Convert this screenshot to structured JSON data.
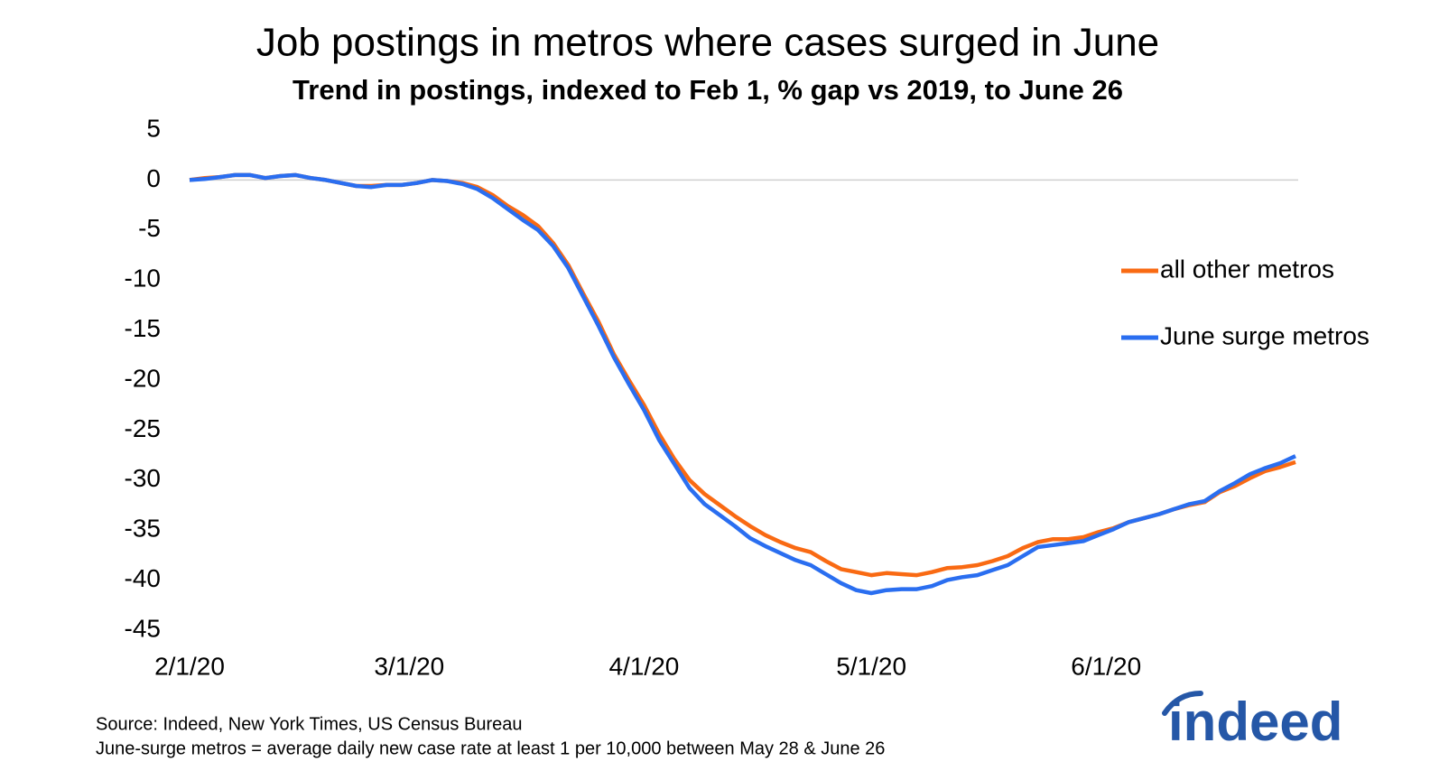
{
  "chart_data": {
    "type": "line",
    "title": "Job postings in metros where cases surged in June",
    "subtitle": "Trend in postings, indexed to Feb 1, % gap vs 2019, to June 26",
    "x": [
      "2/1/20",
      "2/3/20",
      "2/5/20",
      "2/7/20",
      "2/9/20",
      "2/11/20",
      "2/13/20",
      "2/15/20",
      "2/17/20",
      "2/19/20",
      "2/21/20",
      "2/23/20",
      "2/25/20",
      "2/27/20",
      "2/29/20",
      "3/2/20",
      "3/4/20",
      "3/6/20",
      "3/8/20",
      "3/10/20",
      "3/12/20",
      "3/14/20",
      "3/16/20",
      "3/18/20",
      "3/20/20",
      "3/22/20",
      "3/24/20",
      "3/26/20",
      "3/28/20",
      "3/30/20",
      "4/1/20",
      "4/3/20",
      "4/5/20",
      "4/7/20",
      "4/9/20",
      "4/11/20",
      "4/13/20",
      "4/15/20",
      "4/17/20",
      "4/19/20",
      "4/21/20",
      "4/23/20",
      "4/25/20",
      "4/27/20",
      "4/29/20",
      "5/1/20",
      "5/3/20",
      "5/5/20",
      "5/7/20",
      "5/9/20",
      "5/11/20",
      "5/13/20",
      "5/15/20",
      "5/17/20",
      "5/19/20",
      "5/21/20",
      "5/23/20",
      "5/25/20",
      "5/27/20",
      "5/29/20",
      "5/31/20",
      "6/2/20",
      "6/4/20",
      "6/6/20",
      "6/8/20",
      "6/10/20",
      "6/12/20",
      "6/14/20",
      "6/16/20",
      "6/18/20",
      "6/20/20",
      "6/22/20",
      "6/24/20",
      "6/26/20"
    ],
    "series": [
      {
        "name": "all other metros",
        "color": "#f96a13",
        "values": [
          0,
          0.2,
          0.3,
          0.5,
          0.5,
          0.2,
          0.4,
          0.5,
          0.2,
          0,
          -0.3,
          -0.6,
          -0.6,
          -0.5,
          -0.5,
          -0.3,
          0,
          -0.1,
          -0.3,
          -0.7,
          -1.5,
          -2.6,
          -3.5,
          -4.6,
          -6.3,
          -8.5,
          -11.4,
          -14.2,
          -17.4,
          -20.0,
          -22.5,
          -25.4,
          -27.9,
          -30.0,
          -31.4,
          -32.5,
          -33.6,
          -34.6,
          -35.5,
          -36.2,
          -36.8,
          -37.2,
          -38.1,
          -38.9,
          -39.2,
          -39.5,
          -39.3,
          -39.4,
          -39.5,
          -39.2,
          -38.8,
          -38.7,
          -38.5,
          -38.1,
          -37.6,
          -36.8,
          -36.2,
          -35.9,
          -35.9,
          -35.7,
          -35.2,
          -34.8,
          -34.2,
          -33.8,
          -33.4,
          -32.9,
          -32.5,
          -32.2,
          -31.2,
          -30.6,
          -29.8,
          -29.1,
          -28.7,
          -28.2
        ]
      },
      {
        "name": "June surge metros",
        "color": "#2a6ef0",
        "values": [
          0,
          0.1,
          0.3,
          0.5,
          0.5,
          0.2,
          0.4,
          0.5,
          0.2,
          0,
          -0.3,
          -0.6,
          -0.7,
          -0.5,
          -0.5,
          -0.3,
          0,
          -0.1,
          -0.4,
          -0.9,
          -1.8,
          -2.9,
          -4.0,
          -5.0,
          -6.6,
          -8.8,
          -11.7,
          -14.6,
          -17.7,
          -20.4,
          -23.0,
          -26.0,
          -28.4,
          -30.8,
          -32.4,
          -33.5,
          -34.6,
          -35.8,
          -36.6,
          -37.3,
          -38.0,
          -38.5,
          -39.4,
          -40.3,
          -41.0,
          -41.3,
          -41.0,
          -40.9,
          -40.9,
          -40.6,
          -40.0,
          -39.7,
          -39.5,
          -39.0,
          -38.5,
          -37.6,
          -36.7,
          -36.5,
          -36.3,
          -36.1,
          -35.5,
          -34.9,
          -34.2,
          -33.8,
          -33.4,
          -32.9,
          -32.4,
          -32.1,
          -31.1,
          -30.3,
          -29.4,
          -28.8,
          -28.3,
          -27.6
        ]
      }
    ],
    "xlim": [
      "2/1/20",
      "6/26/20"
    ],
    "xticks": [
      "2/1/20",
      "3/1/20",
      "4/1/20",
      "5/1/20",
      "6/1/20"
    ],
    "ylim": [
      -45,
      5
    ],
    "yticks": [
      5,
      0,
      -5,
      -10,
      -15,
      -20,
      -25,
      -30,
      -35,
      -40,
      -45
    ],
    "notes": [
      "Source: Indeed, New York Times, US Census Bureau",
      "June-surge metros = average daily new case rate at least 1 per 10,000 between May 28 & June 26"
    ],
    "logo": "indeed"
  }
}
